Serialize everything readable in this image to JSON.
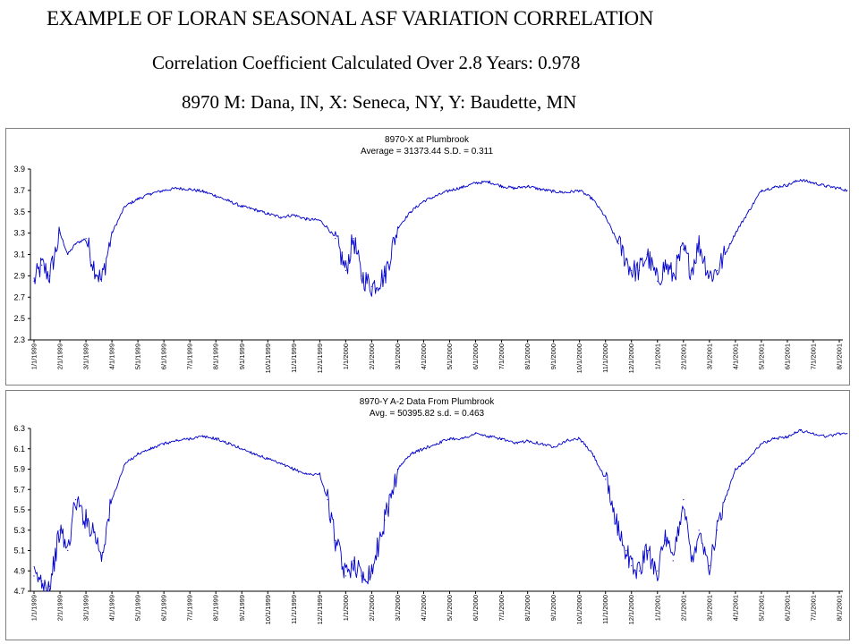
{
  "header": {
    "title": "EXAMPLE OF LORAN SEASONAL ASF VARIATION CORRELATION",
    "subtitle": "Correlation  Coefficient  Calculated Over 2.8 Years:  0.978",
    "stations": "8970 M: Dana, IN, X: Seneca, NY, Y: Baudette, MN"
  },
  "chart_data": [
    {
      "type": "line",
      "title": "8970-X at Plumbrook",
      "subtitle": "Average = 31373.44     S.D. =  0.311",
      "ylim": [
        2.3,
        3.9
      ],
      "yticks": [
        "3.9",
        "3.7",
        "3.5",
        "3.3",
        "3.1",
        "2.9",
        "2.7",
        "2.5",
        "2.3"
      ],
      "categories": [
        "1/1/1999",
        "2/1/1999",
        "3/1/1999",
        "4/1/1999",
        "5/1/1999",
        "6/1/1999",
        "7/1/1999",
        "8/1/1999",
        "9/1/1999",
        "10/1/1999",
        "11/1/1999",
        "12/1/1999",
        "1/1/2000",
        "2/1/2000",
        "3/1/2000",
        "4/1/2000",
        "5/1/2000",
        "6/1/2000",
        "7/1/2000",
        "8/1/2000",
        "9/1/2000",
        "10/1/2000",
        "11/1/2000",
        "12/1/2000",
        "1/1/2001",
        "2/1/2001",
        "3/1/2001",
        "4/1/2001",
        "5/1/2001",
        "6/1/2001",
        "7/1/2001",
        "8/1/2001"
      ],
      "line_color": "#0000cc",
      "grid": false,
      "x": [
        0,
        0.3,
        0.6,
        1,
        1.3,
        1.6,
        2,
        2.3,
        2.6,
        3,
        3.5,
        4,
        4.5,
        5,
        5.5,
        6,
        6.5,
        7,
        7.5,
        8,
        8.5,
        9,
        9.5,
        10,
        10.5,
        11,
        11.3,
        11.6,
        12,
        12.3,
        12.6,
        13,
        13.5,
        14,
        14.5,
        15,
        15.5,
        16,
        16.5,
        17,
        17.5,
        18,
        18.5,
        19,
        19.5,
        20,
        20.5,
        21,
        21.5,
        22,
        22.5,
        22.8,
        23,
        23.3,
        23.6,
        24,
        24.3,
        24.6,
        25,
        25.3,
        25.6,
        26,
        26.3,
        26.6,
        27,
        27.5,
        28,
        28.5,
        29,
        29.5,
        30,
        30.5,
        31,
        31.3
      ],
      "values": [
        2.85,
        3.0,
        2.9,
        3.3,
        3.1,
        3.2,
        3.25,
        3.0,
        2.85,
        3.3,
        3.55,
        3.62,
        3.67,
        3.7,
        3.72,
        3.71,
        3.69,
        3.65,
        3.6,
        3.55,
        3.52,
        3.48,
        3.45,
        3.47,
        3.43,
        3.42,
        3.35,
        3.25,
        2.95,
        3.25,
        2.9,
        2.8,
        2.9,
        3.35,
        3.5,
        3.6,
        3.65,
        3.7,
        3.73,
        3.77,
        3.78,
        3.74,
        3.72,
        3.74,
        3.71,
        3.69,
        3.68,
        3.7,
        3.62,
        3.45,
        3.2,
        3.05,
        2.95,
        2.95,
        3.1,
        2.85,
        3.0,
        2.9,
        3.15,
        2.95,
        3.2,
        2.9,
        2.95,
        3.1,
        3.3,
        3.5,
        3.7,
        3.73,
        3.75,
        3.8,
        3.77,
        3.74,
        3.72,
        3.7
      ]
    },
    {
      "type": "line",
      "title": "8970-Y A-2 Data From Plumbrook",
      "subtitle": "Avg. = 50395.82     s.d. = 0.463",
      "ylim": [
        4.7,
        6.3
      ],
      "yticks": [
        "6.3",
        "6.1",
        "5.9",
        "5.7",
        "5.5",
        "5.3",
        "5.1",
        "4.9",
        "4.7"
      ],
      "categories": [
        "1/1/1999",
        "2/1/1999",
        "3/1/1999",
        "4/1/1999",
        "5/1/1999",
        "6/1/1999",
        "7/1/1999",
        "8/1/1999",
        "9/1/1999",
        "10/1/1999",
        "11/1/1999",
        "12/1/1999",
        "1/1/2000",
        "2/1/2000",
        "3/1/2000",
        "4/1/2000",
        "5/1/2000",
        "6/1/2000",
        "7/1/2000",
        "8/1/2000",
        "9/1/2000",
        "10/1/2000",
        "11/1/2000",
        "12/1/2000",
        "1/1/2001",
        "2/1/2001",
        "3/1/2001",
        "4/1/2001",
        "5/1/2001",
        "6/1/2001",
        "7/1/2001",
        "8/1/2001"
      ],
      "line_color": "#0000cc",
      "grid": false,
      "x": [
        0,
        0.3,
        0.6,
        1,
        1.3,
        1.6,
        2,
        2.3,
        2.6,
        3,
        3.5,
        4,
        4.5,
        5,
        5.5,
        6,
        6.5,
        7,
        7.5,
        8,
        8.5,
        9,
        9.5,
        10,
        10.5,
        11,
        11.3,
        11.6,
        12,
        12.3,
        12.6,
        13,
        13.5,
        14,
        14.5,
        15,
        15.5,
        16,
        16.5,
        17,
        17.5,
        18,
        18.5,
        19,
        19.5,
        20,
        20.5,
        21,
        21.5,
        22,
        22.5,
        22.8,
        23,
        23.3,
        23.6,
        24,
        24.3,
        24.6,
        25,
        25.3,
        25.6,
        26,
        26.3,
        26.6,
        27,
        27.5,
        28,
        28.5,
        29,
        29.5,
        30,
        30.5,
        31,
        31.3
      ],
      "values": [
        4.85,
        4.8,
        4.75,
        5.3,
        5.1,
        5.6,
        5.4,
        5.3,
        5.05,
        5.6,
        5.95,
        6.05,
        6.1,
        6.15,
        6.18,
        6.2,
        6.22,
        6.2,
        6.15,
        6.1,
        6.05,
        6.0,
        5.95,
        5.9,
        5.85,
        5.85,
        5.6,
        5.2,
        4.85,
        5.0,
        4.85,
        4.9,
        5.4,
        5.9,
        6.05,
        6.1,
        6.15,
        6.2,
        6.2,
        6.25,
        6.22,
        6.2,
        6.15,
        6.18,
        6.15,
        6.12,
        6.18,
        6.2,
        6.05,
        5.8,
        5.3,
        5.1,
        4.95,
        4.9,
        5.1,
        4.9,
        5.2,
        5.0,
        5.6,
        5.0,
        5.3,
        4.95,
        5.3,
        5.6,
        5.9,
        6.0,
        6.15,
        6.2,
        6.22,
        6.28,
        6.25,
        6.22,
        6.25,
        6.25
      ]
    }
  ]
}
